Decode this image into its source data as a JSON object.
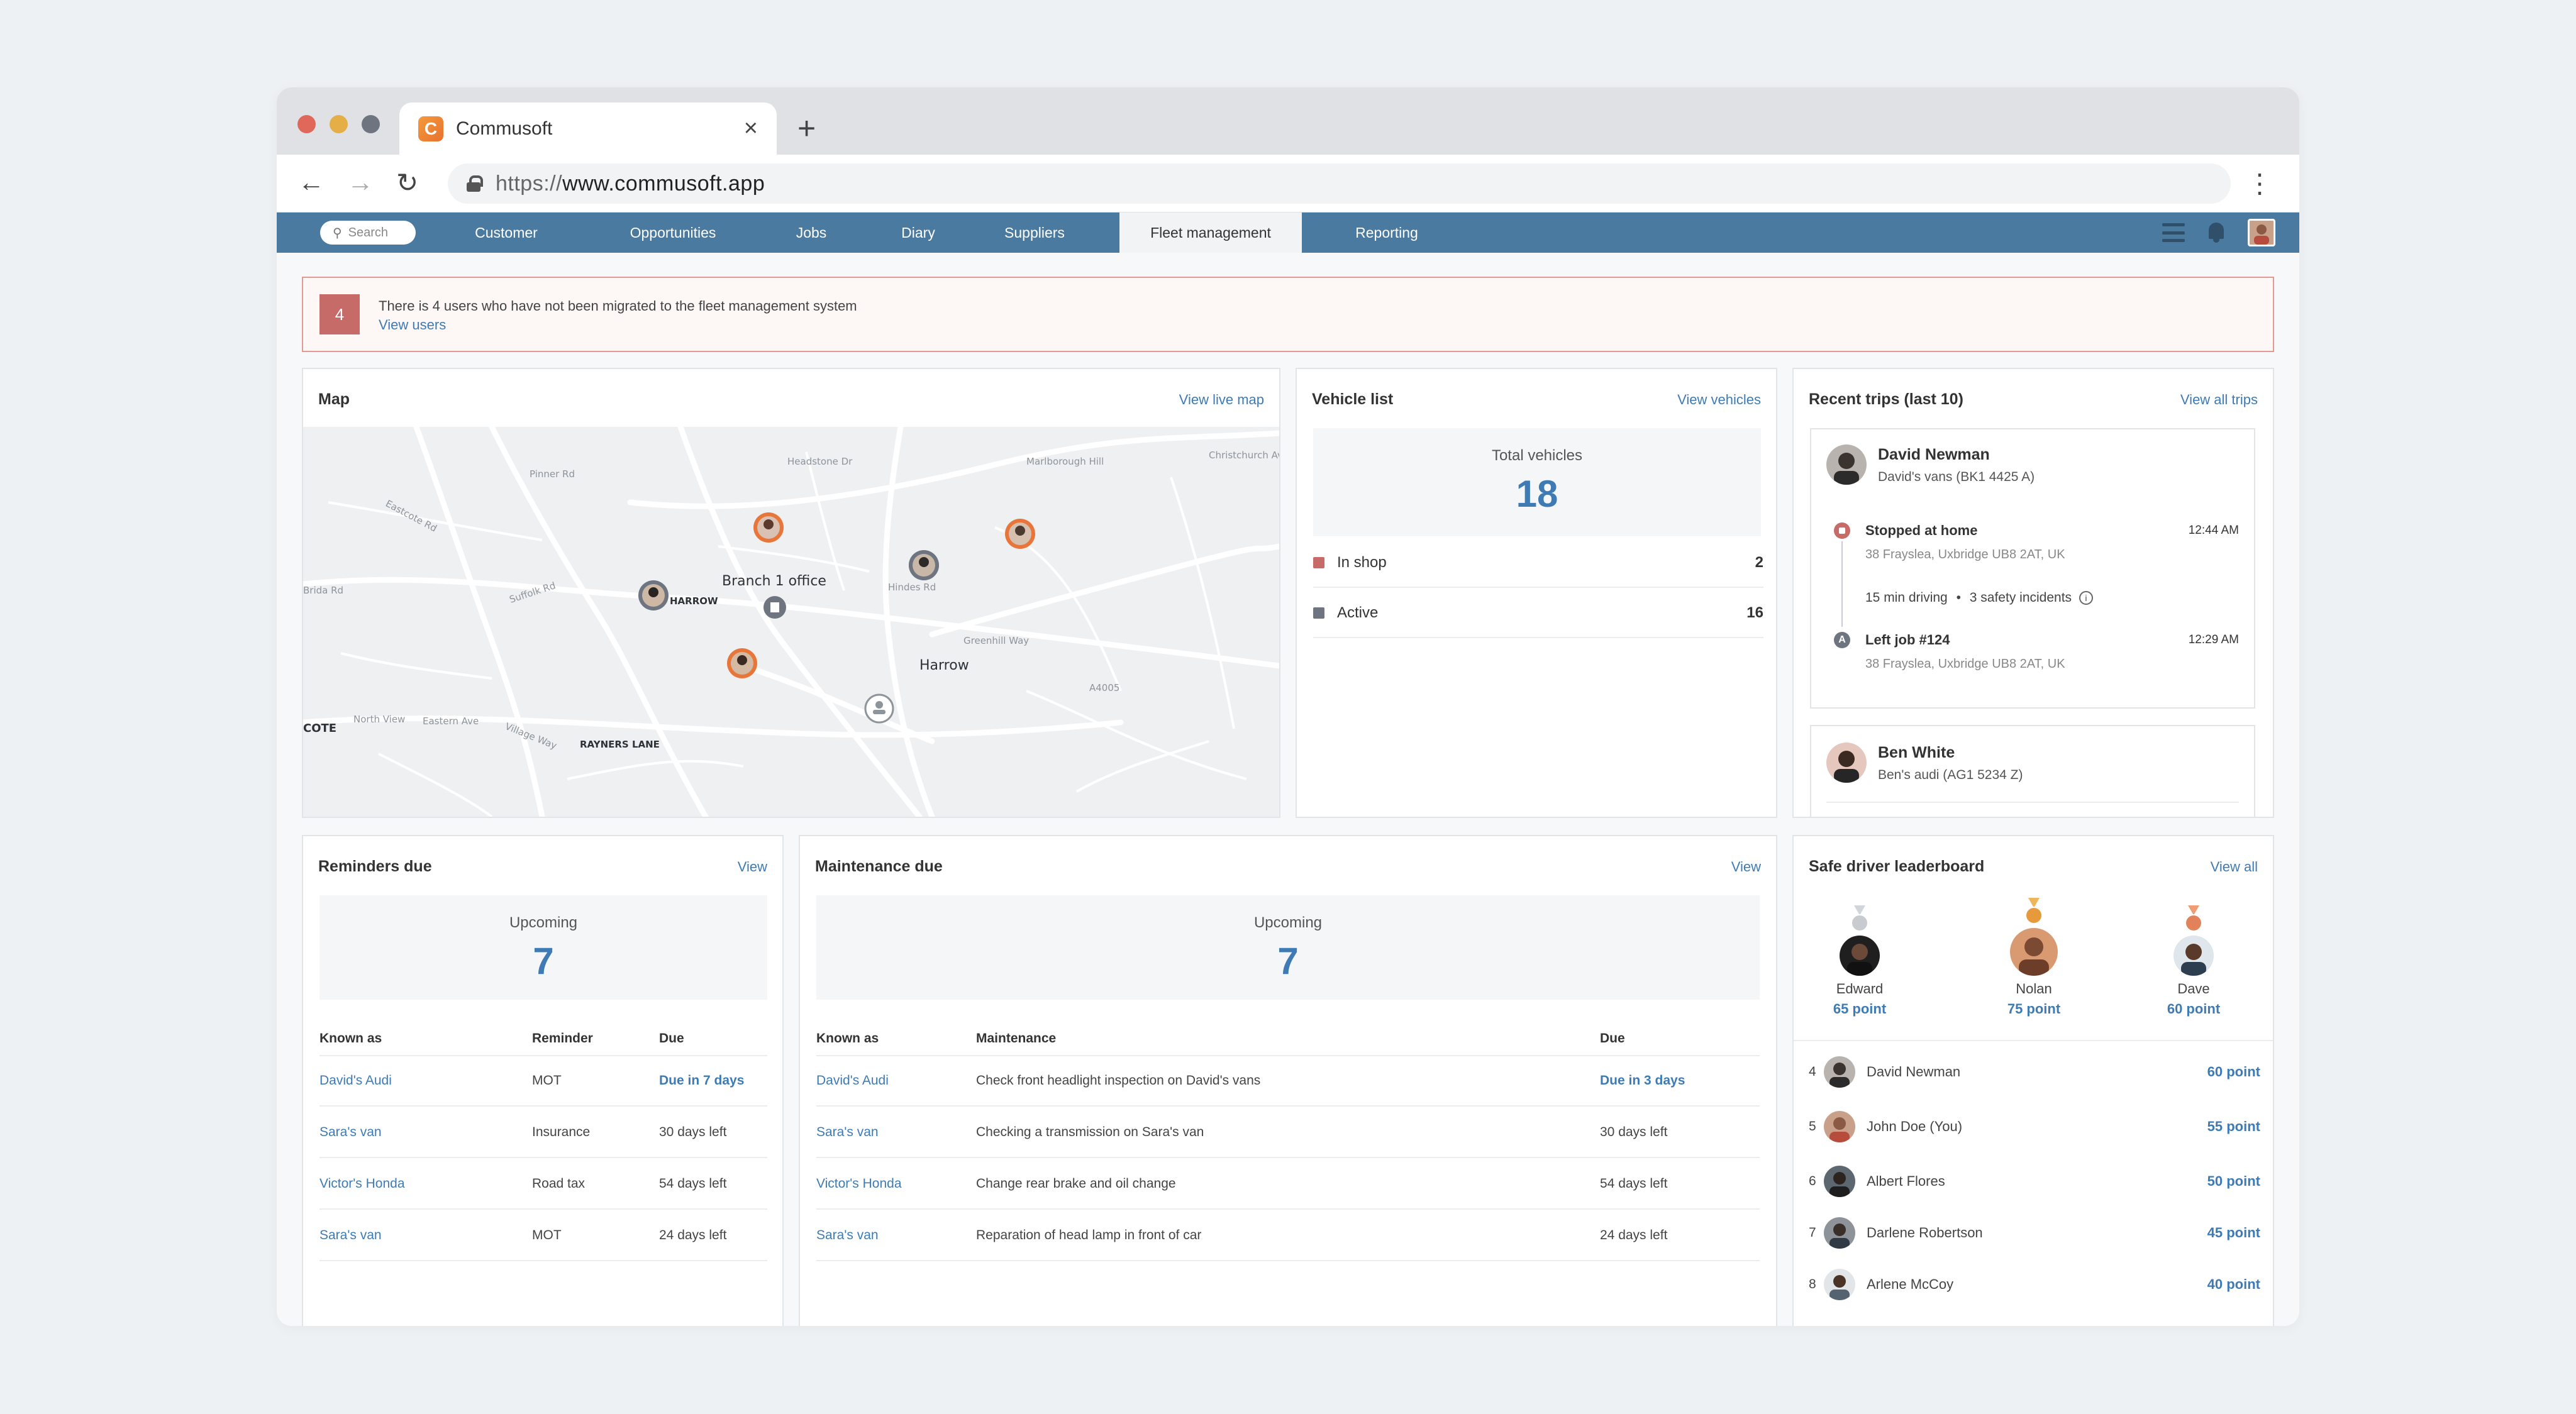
{
  "browser": {
    "tab_title": "Commusoft",
    "favicon_letter": "C",
    "url_scheme": "https://",
    "url_host": "www.commusoft.app"
  },
  "nav": {
    "search_placeholder": "Search",
    "items": [
      "Customer",
      "Opportunities",
      "Jobs",
      "Diary",
      "Suppliers",
      "Fleet management",
      "Reporting"
    ],
    "active": "Fleet management"
  },
  "alert": {
    "count": "4",
    "message": "There is 4 users who have not been migrated to the fleet management system",
    "link": "View users"
  },
  "map_panel": {
    "title": "Map",
    "link": "View live map",
    "labels": {
      "branch": "Branch 1 office",
      "harrow": "Harrow",
      "south_harrow": "TH HARROW",
      "rayners_lane": "RAYNERS LANE",
      "cote": "COTE"
    }
  },
  "vehicle_list": {
    "title": "Vehicle list",
    "link": "View vehicles",
    "total_label": "Total vehicles",
    "total_value": "18",
    "rows": [
      {
        "label": "In shop",
        "count": "2",
        "color": "#c66b68"
      },
      {
        "label": "Active",
        "count": "16",
        "color": "#6e7580"
      }
    ]
  },
  "recent_trips": {
    "title": "Recent trips (last 10)",
    "link": "View all trips",
    "trips": [
      {
        "driver": "David Newman",
        "vehicle": "David's vans (BK1 4425 A)",
        "events": [
          {
            "title": "Stopped at home",
            "address": "38 Frayslea, Uxbridge UB8 2AT, UK",
            "time": "12:44 AM"
          },
          {
            "title": "Left job #124",
            "address": "38 Frayslea, Uxbridge UB8 2AT, UK",
            "time": "12:29 AM"
          }
        ],
        "driving": "15 min driving",
        "incidents": "3 safety incidents"
      },
      {
        "driver": "Ben White",
        "vehicle": "Ben's audi (AG1 5234 Z)"
      }
    ]
  },
  "reminders": {
    "title": "Reminders due",
    "link": "View",
    "upcoming_label": "Upcoming",
    "upcoming_value": "7",
    "headers": [
      "Known as",
      "Reminder",
      "Due"
    ],
    "rows": [
      {
        "known_as": "David's Audi",
        "reminder": "MOT",
        "due": "Due in 7 days",
        "soon": true
      },
      {
        "known_as": "Sara's van",
        "reminder": "Insurance",
        "due": "30 days left",
        "soon": false
      },
      {
        "known_as": "Victor's Honda",
        "reminder": "Road tax",
        "due": "54 days left",
        "soon": false
      },
      {
        "known_as": "Sara's van",
        "reminder": "MOT",
        "due": "24 days left",
        "soon": false
      }
    ]
  },
  "maintenance": {
    "title": "Maintenance due",
    "link": "View",
    "upcoming_label": "Upcoming",
    "upcoming_value": "7",
    "headers": [
      "Known as",
      "Maintenance",
      "Due"
    ],
    "rows": [
      {
        "known_as": "David's Audi",
        "maintenance": "Check front headlight inspection on David's vans",
        "due": "Due in 3 days",
        "soon": true
      },
      {
        "known_as": "Sara's van",
        "maintenance": "Checking a transmission on Sara's van",
        "due": "30 days left",
        "soon": false
      },
      {
        "known_as": "Victor's Honda",
        "maintenance": "Change rear brake and oil change",
        "due": "54 days left",
        "soon": false
      },
      {
        "known_as": "Sara's van",
        "maintenance": "Reparation of head lamp in front of car",
        "due": "24 days left",
        "soon": false
      }
    ]
  },
  "leaderboard": {
    "title": "Safe driver leaderboard",
    "link": "View all",
    "podium": [
      {
        "name": "Edward",
        "points": "65 point",
        "medal": "silver"
      },
      {
        "name": "Nolan",
        "points": "75 point",
        "medal": "gold"
      },
      {
        "name": "Dave",
        "points": "60 point",
        "medal": "bronze"
      }
    ],
    "rows": [
      {
        "rank": "4",
        "name": "David Newman",
        "points": "60 point"
      },
      {
        "rank": "5",
        "name": "John Doe (You)",
        "points": "55 point"
      },
      {
        "rank": "6",
        "name": "Albert Flores",
        "points": "50 point"
      },
      {
        "rank": "7",
        "name": "Darlene Robertson",
        "points": "45 point"
      },
      {
        "rank": "8",
        "name": "Arlene McCoy",
        "points": "40 point"
      }
    ]
  },
  "colors": {
    "nav_bg": "#4a7aa0",
    "accent": "#3e7bb5",
    "alert_red": "#c66b68",
    "marker_orange": "#e8763a"
  }
}
